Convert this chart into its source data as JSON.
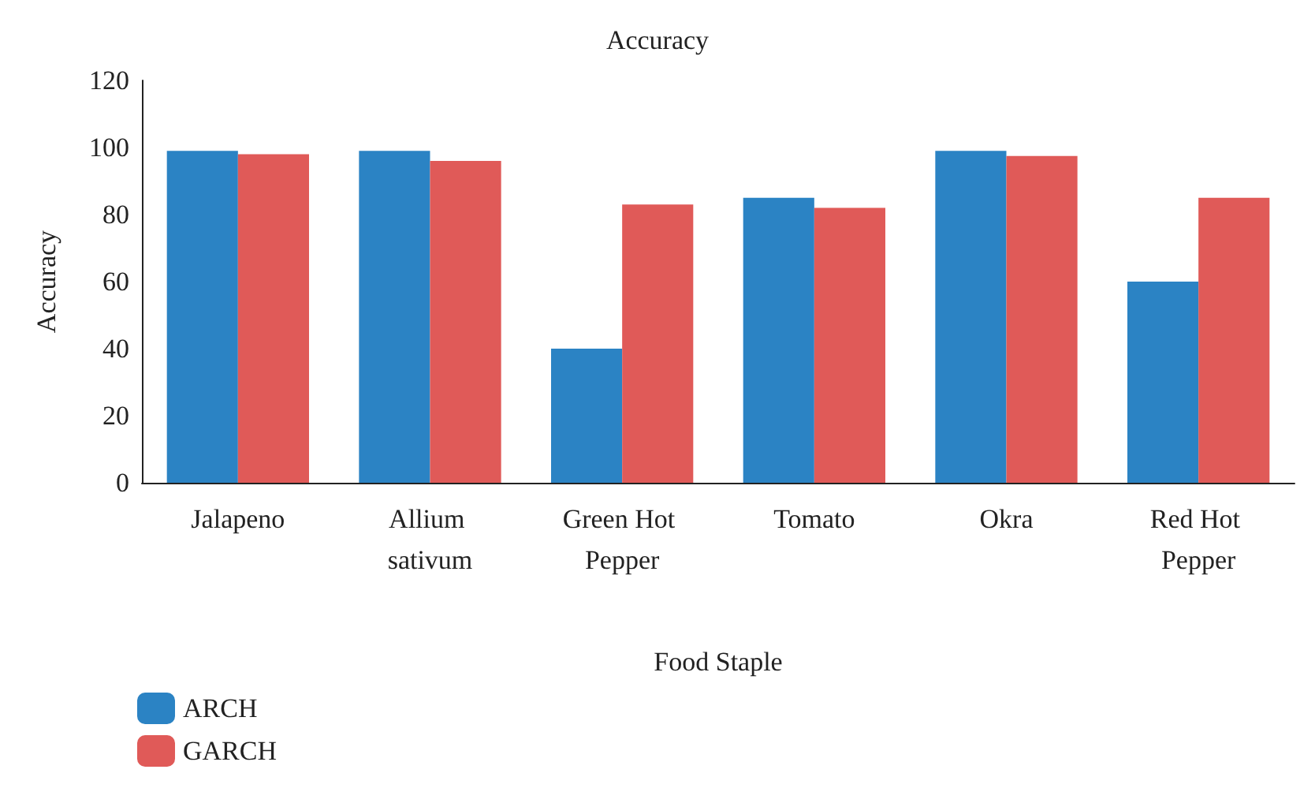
{
  "chart_data": {
    "type": "bar",
    "title": "Accuracy",
    "xlabel": "Food Staple",
    "ylabel": "Accuracy",
    "categories": [
      "Jalapeno",
      "Allium sativum",
      "Green Hot Pepper",
      "Tomato",
      "Okra",
      "Red Hot Pepper"
    ],
    "series": [
      {
        "name": "ARCH",
        "color": "#2b83c4",
        "values": [
          99,
          99,
          40,
          85,
          99,
          60
        ]
      },
      {
        "name": "GARCH",
        "color": "#e05a58",
        "values": [
          98,
          96,
          83,
          82,
          97.5,
          85
        ]
      }
    ],
    "ylim": [
      0,
      120
    ],
    "yticks": [
      0,
      20,
      40,
      60,
      80,
      100,
      120
    ],
    "grid": false,
    "legend": "bottom left"
  }
}
